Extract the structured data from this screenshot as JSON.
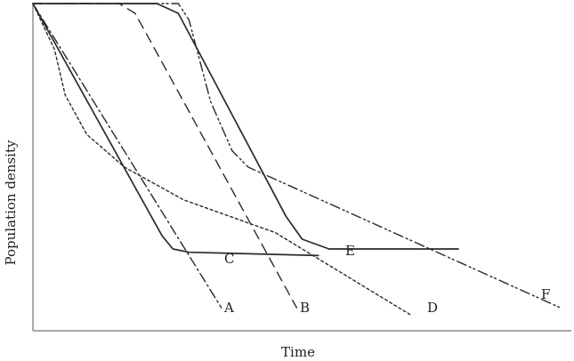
{
  "chart_data": {
    "type": "line",
    "xlabel": "Time",
    "ylabel": "Population density",
    "xlim": [
      0,
      100
    ],
    "ylim": [
      0,
      100
    ],
    "grid": false,
    "legend": "none",
    "series": [
      {
        "name": "A",
        "style": "dash-dot",
        "points": [
          [
            0,
            100
          ],
          [
            35,
            7
          ]
        ]
      },
      {
        "name": "B",
        "style": "dashed",
        "points": [
          [
            0,
            100
          ],
          [
            16,
            100
          ],
          [
            19,
            97
          ],
          [
            49,
            7
          ]
        ]
      },
      {
        "name": "C",
        "style": "solid",
        "points": [
          [
            0,
            100
          ],
          [
            24,
            29
          ],
          [
            26,
            25
          ],
          [
            29,
            24
          ],
          [
            53,
            23
          ]
        ]
      },
      {
        "name": "D",
        "style": "dotted",
        "points": [
          [
            0,
            100
          ],
          [
            4,
            86
          ],
          [
            6,
            72
          ],
          [
            10,
            60
          ],
          [
            17,
            50
          ],
          [
            28,
            40
          ],
          [
            45,
            30
          ],
          [
            70,
            5
          ]
        ]
      },
      {
        "name": "E",
        "style": "solid",
        "points": [
          [
            0,
            100
          ],
          [
            23,
            100
          ],
          [
            27,
            97
          ],
          [
            47,
            35
          ],
          [
            50,
            28
          ],
          [
            55,
            25
          ],
          [
            79,
            25
          ]
        ]
      },
      {
        "name": "F",
        "style": "dash-dot-dot",
        "points": [
          [
            0,
            100
          ],
          [
            27,
            100
          ],
          [
            29,
            95
          ],
          [
            33,
            70
          ],
          [
            37,
            55
          ],
          [
            40,
            50
          ],
          [
            98,
            7
          ]
        ]
      }
    ]
  },
  "labels": {
    "A": "A",
    "B": "B",
    "C": "C",
    "D": "D",
    "E": "E",
    "F": "F"
  },
  "colors": {
    "curves": "#2a2a2a",
    "axes": "#555555"
  }
}
